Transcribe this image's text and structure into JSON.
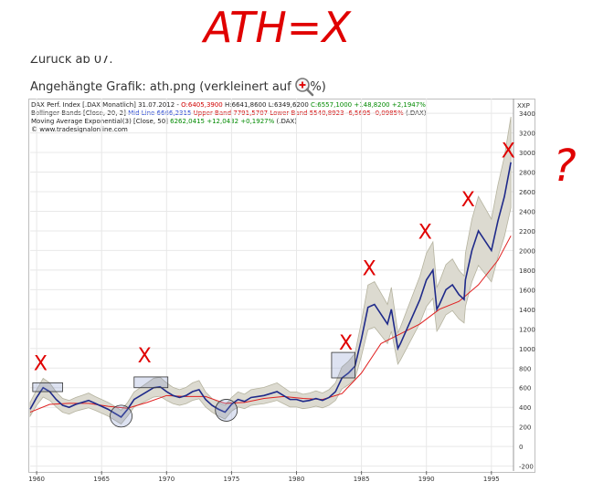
{
  "annotation": {
    "top_text": "ATH=X",
    "question_mark": "?",
    "marker_symbol": "X"
  },
  "forum": {
    "back_line": "Zurück ab 07.",
    "attachment_label": "Angehängte Grafik: ath.png (verkleinert auf 70%)"
  },
  "legend": {
    "line1_prefix": "DAX Perf. Index [.DAX Monatlich] 31.07.2012 - ",
    "line1_open": "O:6405,3900",
    "line1_high": " H:6641,8600 L:6349,6200 ",
    "line1_close": "C:6557,1000 +148,8200 +2,1947%",
    "line2_prefix": "Bollinger Bands [Close, 20, 2] ",
    "line2_mid": "Mid Line 6666,2315",
    "line2_upper": " Upper Band 7791,5707",
    "line2_lower": " Lower Band 5540,8923",
    "line2_change": " -6,5695 -0,0985%",
    "line2_suffix": " (.DAX)",
    "line3_prefix": "Moving Average Exponential(3) [Close, 50] ",
    "line3_value": "6262,0415 +12,0432 +0,1927%",
    "line3_suffix": " (.DAX)",
    "line4": "© www.tradesignalonline.com"
  },
  "colors": {
    "price": "#1f2a8a",
    "band_fill": "#dcdad0",
    "band_edge": "#b5b39f",
    "ema": "#e02020",
    "marker": "#e00000",
    "grid": "#e8e8e8"
  },
  "chart_data": {
    "type": "line",
    "y_axis_label": "XXP",
    "ylim": [
      -250,
      3550
    ],
    "y_ticks": [
      -200,
      0,
      200,
      400,
      600,
      800,
      1000,
      1200,
      1400,
      1600,
      1800,
      2000,
      2200,
      2400,
      2600,
      2800,
      3000,
      3200,
      3400
    ],
    "x_ticks": [
      "1960",
      "1965",
      "1970",
      "1975",
      "1980",
      "1985",
      "1990",
      "1995"
    ],
    "x_tick_years": [
      1960,
      1965,
      1970,
      1975,
      1980,
      1985,
      1990,
      1995
    ],
    "xlim": [
      1959.5,
      1996.7
    ],
    "grid": true,
    "series": [
      {
        "name": "DAX Perf. Index",
        "x": [
          1959.5,
          1960,
          1960.5,
          1961,
          1961.5,
          1962,
          1962.5,
          1963,
          1963.5,
          1964,
          1964.5,
          1965,
          1965.5,
          1966,
          1966.5,
          1967,
          1967.5,
          1968,
          1968.5,
          1969,
          1969.5,
          1970,
          1970.5,
          1971,
          1971.5,
          1972,
          1972.5,
          1973,
          1973.5,
          1974,
          1974.5,
          1975,
          1975.5,
          1976,
          1976.5,
          1977,
          1977.5,
          1978,
          1978.5,
          1979,
          1979.5,
          1980,
          1980.5,
          1981,
          1981.5,
          1982,
          1982.5,
          1983,
          1983.5,
          1984,
          1984.5,
          1985,
          1985.5,
          1986,
          1986.5,
          1987,
          1987.3,
          1987.8,
          1988,
          1988.5,
          1989,
          1989.5,
          1990,
          1990.5,
          1990.8,
          1991,
          1991.5,
          1992,
          1992.5,
          1992.9,
          1993,
          1993.5,
          1994,
          1994.5,
          1995,
          1995.5,
          1996,
          1996.5
        ],
        "values": [
          380,
          500,
          600,
          560,
          480,
          420,
          400,
          430,
          450,
          470,
          440,
          410,
          380,
          340,
          300,
          380,
          480,
          520,
          560,
          600,
          610,
          560,
          520,
          500,
          520,
          560,
          580,
          480,
          420,
          380,
          350,
          430,
          480,
          460,
          500,
          510,
          520,
          540,
          560,
          520,
          480,
          480,
          460,
          470,
          490,
          470,
          500,
          560,
          700,
          750,
          820,
          1100,
          1420,
          1450,
          1350,
          1250,
          1400,
          1000,
          1050,
          1200,
          1350,
          1500,
          1700,
          1800,
          1400,
          1450,
          1600,
          1650,
          1550,
          1500,
          1700,
          2000,
          2200,
          2100,
          2000,
          2300,
          2550,
          2900
        ]
      },
      {
        "name": "Moving Average Exponential(3)",
        "x": [
          1959.5,
          1961,
          1962.5,
          1964,
          1965.5,
          1967,
          1968.5,
          1970,
          1971.5,
          1973,
          1974.5,
          1976,
          1977.5,
          1979,
          1980.5,
          1982,
          1983.5,
          1985,
          1986.5,
          1988,
          1989.5,
          1991,
          1992.5,
          1994,
          1995.5,
          1996.5
        ],
        "values": [
          350,
          430,
          440,
          440,
          410,
          390,
          450,
          520,
          510,
          510,
          440,
          450,
          490,
          510,
          490,
          480,
          540,
          750,
          1050,
          1150,
          1250,
          1400,
          1480,
          1650,
          1900,
          2150
        ]
      }
    ],
    "markers": [
      {
        "x": 1960.3,
        "y": 780
      },
      {
        "x": 1968.3,
        "y": 860
      },
      {
        "x": 1983.8,
        "y": 990
      },
      {
        "x": 1985.6,
        "y": 1750
      },
      {
        "x": 1989.9,
        "y": 2120
      },
      {
        "x": 1993.2,
        "y": 2450
      },
      {
        "x": 1996.3,
        "y": 2950
      }
    ],
    "boxes": [
      {
        "x0": 1959.7,
        "x1": 1962.0,
        "y0": 560,
        "y1": 650
      },
      {
        "x0": 1967.5,
        "x1": 1970.1,
        "y0": 600,
        "y1": 710
      },
      {
        "x0": 1982.7,
        "x1": 1984.5,
        "y0": 700,
        "y1": 960
      }
    ],
    "circles": [
      {
        "x": 1966.5,
        "y": 310
      },
      {
        "x": 1974.6,
        "y": 370
      }
    ]
  }
}
